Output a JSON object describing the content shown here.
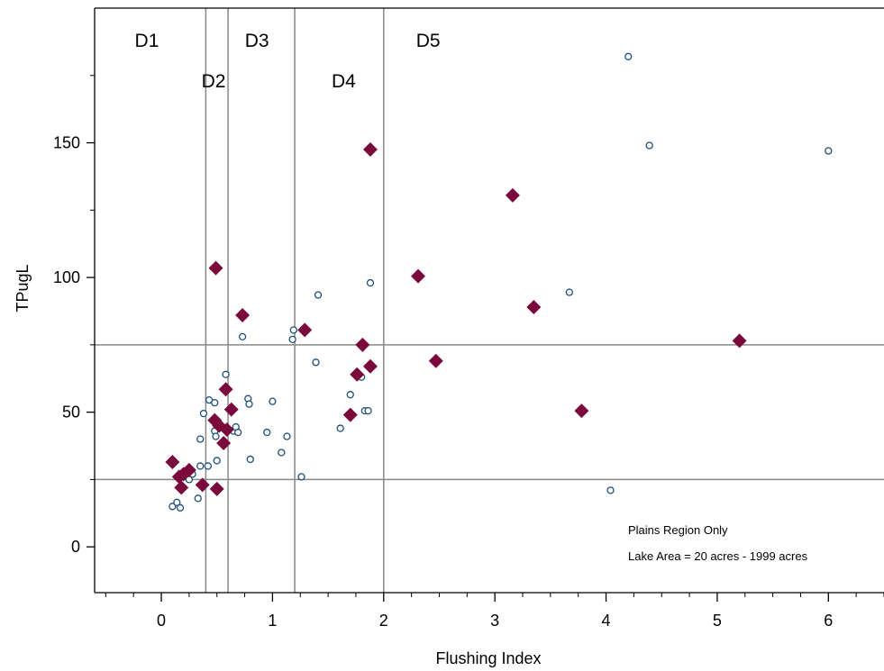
{
  "chart_data": {
    "type": "scatter",
    "title": "",
    "xlabel": "Flushing Index",
    "ylabel": "TPugL",
    "xlim": [
      -0.6,
      6.5
    ],
    "ylim": [
      -17,
      200
    ],
    "xticks": [
      0,
      1,
      2,
      3,
      4,
      5,
      6
    ],
    "xtick_labels": [
      "0",
      "1",
      "2",
      "3",
      "4",
      "5",
      "6"
    ],
    "yticks": [
      0,
      50,
      100,
      150
    ],
    "ytick_labels": [
      "0",
      "50",
      "100",
      "150"
    ],
    "grid": false,
    "reference_lines": {
      "vertical": [
        0.4,
        0.6,
        1.2,
        2.0
      ],
      "horizontal": [
        25,
        75
      ]
    },
    "region_labels": [
      {
        "text": "D1",
        "x": -0.13,
        "y": 188
      },
      {
        "text": "D2",
        "x": 0.47,
        "y": 173
      },
      {
        "text": "D3",
        "x": 0.86,
        "y": 188
      },
      {
        "text": "D4",
        "x": 1.64,
        "y": 173
      },
      {
        "text": "D5",
        "x": 2.4,
        "y": 188
      }
    ],
    "annotations": [
      "Plains Region Only",
      "Lake Area = 20 acres - 1999 acres"
    ],
    "series": [
      {
        "marker": "circle",
        "color": "#1f4e79",
        "points": [
          [
            0.1,
            15
          ],
          [
            0.14,
            16.5
          ],
          [
            0.17,
            14.5
          ],
          [
            0.25,
            25
          ],
          [
            0.28,
            27
          ],
          [
            0.33,
            18
          ],
          [
            0.35,
            40
          ],
          [
            0.35,
            30
          ],
          [
            0.38,
            49.5
          ],
          [
            0.42,
            30
          ],
          [
            0.43,
            54.5
          ],
          [
            0.48,
            53.5
          ],
          [
            0.48,
            43
          ],
          [
            0.49,
            41
          ],
          [
            0.5,
            32
          ],
          [
            0.56,
            44
          ],
          [
            0.58,
            64
          ],
          [
            0.65,
            43
          ],
          [
            0.67,
            44.5
          ],
          [
            0.69,
            42.5
          ],
          [
            0.73,
            78
          ],
          [
            0.78,
            55
          ],
          [
            0.79,
            53
          ],
          [
            0.8,
            32.5
          ],
          [
            0.95,
            42.5
          ],
          [
            1.0,
            54
          ],
          [
            1.08,
            35
          ],
          [
            1.13,
            41
          ],
          [
            1.18,
            77
          ],
          [
            1.19,
            80.5
          ],
          [
            1.26,
            26
          ],
          [
            1.39,
            68.5
          ],
          [
            1.41,
            93.5
          ],
          [
            1.61,
            44
          ],
          [
            1.7,
            56.5
          ],
          [
            1.8,
            63
          ],
          [
            1.83,
            50.5
          ],
          [
            1.86,
            50.5
          ],
          [
            1.88,
            98
          ],
          [
            3.67,
            94.5
          ],
          [
            4.04,
            21
          ],
          [
            4.2,
            182
          ],
          [
            4.39,
            149
          ],
          [
            6.0,
            147
          ]
        ]
      },
      {
        "marker": "diamond",
        "color": "#7b0a3c",
        "points": [
          [
            0.1,
            31.5
          ],
          [
            0.16,
            26
          ],
          [
            0.18,
            22
          ],
          [
            0.2,
            27
          ],
          [
            0.25,
            28.5
          ],
          [
            0.37,
            23
          ],
          [
            0.48,
            47
          ],
          [
            0.49,
            103.5
          ],
          [
            0.5,
            21.5
          ],
          [
            0.52,
            45
          ],
          [
            0.56,
            38.5
          ],
          [
            0.58,
            58.5
          ],
          [
            0.59,
            43.5
          ],
          [
            0.63,
            51
          ],
          [
            0.73,
            86
          ],
          [
            1.29,
            80.5
          ],
          [
            1.7,
            49
          ],
          [
            1.76,
            64
          ],
          [
            1.81,
            75
          ],
          [
            1.88,
            67
          ],
          [
            1.88,
            147.5
          ],
          [
            2.31,
            100.5
          ],
          [
            2.47,
            69
          ],
          [
            3.16,
            130.5
          ],
          [
            3.35,
            89
          ],
          [
            3.78,
            50.5
          ],
          [
            5.2,
            76.5
          ]
        ]
      }
    ]
  }
}
